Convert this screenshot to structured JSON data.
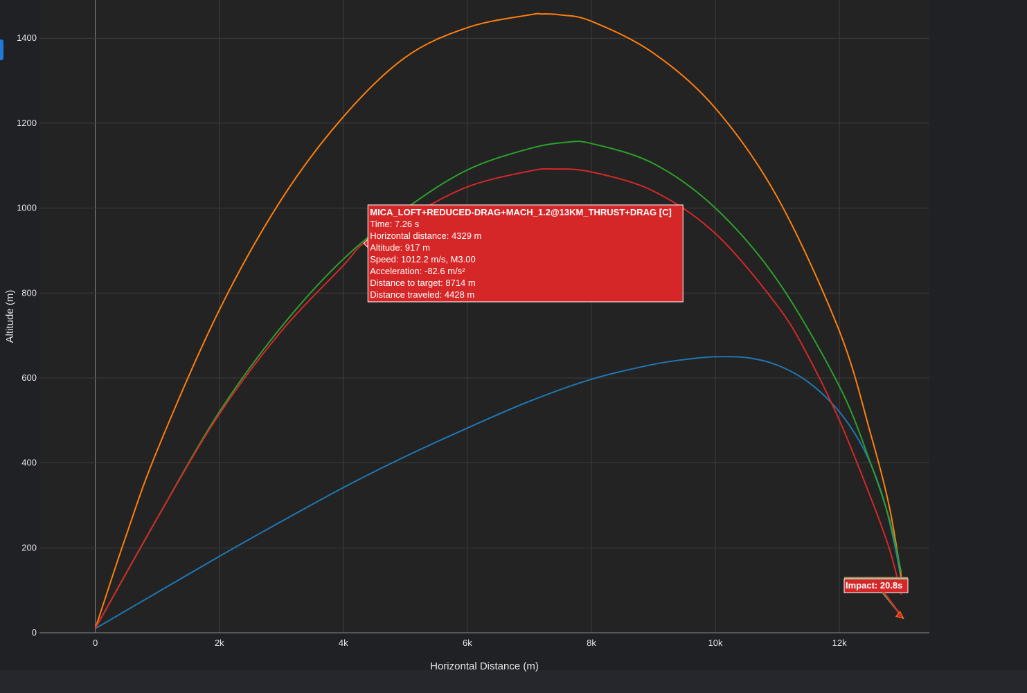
{
  "colors": {
    "page_background": "#1f2125",
    "plot_background": "#232323",
    "grid": "#3d3d3d",
    "axis_text": "#e6e6e6",
    "side_marker": "#1e7ad6"
  },
  "chart_data": {
    "type": "line",
    "title": "",
    "xlabel": "Horizontal Distance (m)",
    "ylabel": "Altitude (m)",
    "xlim": [
      -900,
      13450
    ],
    "ylim": [
      0,
      1490
    ],
    "x_ticks": [
      0,
      2000,
      4000,
      6000,
      8000,
      10000,
      12000
    ],
    "x_tick_labels": [
      "0",
      "2k",
      "4k",
      "6k",
      "8k",
      "10k",
      "12k"
    ],
    "y_ticks": [
      0,
      200,
      400,
      600,
      800,
      1000,
      1200,
      1400
    ],
    "y_tick_labels": [
      "0",
      "200",
      "400",
      "600",
      "800",
      "1000",
      "1200",
      "1400"
    ],
    "grid": true,
    "legend": "none",
    "series": [
      {
        "color": "#1f77b4",
        "x": [
          0,
          1000,
          2000,
          3000,
          4000,
          5000,
          6000,
          7000,
          8000,
          9000,
          9600,
          10000,
          10500,
          11000,
          11500,
          12000,
          12400,
          12700,
          12900,
          13000
        ],
        "y": [
          10,
          95,
          180,
          262,
          342,
          415,
          482,
          545,
          597,
          632,
          645,
          650,
          648,
          630,
          590,
          520,
          430,
          320,
          200,
          120
        ]
      },
      {
        "color": "#ff7f0e",
        "x": [
          0,
          500,
          1000,
          2000,
          3000,
          4000,
          5000,
          6000,
          7000,
          7200,
          7500,
          8000,
          9000,
          10000,
          11000,
          12000,
          12500,
          12800,
          13000
        ],
        "y": [
          10,
          230,
          430,
          760,
          1020,
          1215,
          1355,
          1425,
          1455,
          1457,
          1455,
          1440,
          1365,
          1235,
          1025,
          710,
          470,
          300,
          130
        ]
      },
      {
        "color": "#2ca02c",
        "x": [
          0,
          1000,
          2000,
          3000,
          4000,
          5000,
          6000,
          7000,
          7600,
          8000,
          9000,
          10000,
          11000,
          12000,
          12500,
          12800,
          13000
        ],
        "y": [
          10,
          270,
          520,
          720,
          880,
          998,
          1090,
          1140,
          1155,
          1152,
          1105,
          1000,
          830,
          580,
          400,
          270,
          140
        ]
      },
      {
        "color": "#d62728",
        "x": [
          0,
          1000,
          2000,
          3000,
          4000,
          4329,
          5000,
          6000,
          7000,
          7400,
          8000,
          9000,
          10000,
          11000,
          11500,
          12000,
          12500,
          12800,
          13000
        ],
        "y": [
          10,
          270,
          515,
          710,
          865,
          917,
          975,
          1050,
          1087,
          1092,
          1085,
          1040,
          940,
          770,
          650,
          500,
          320,
          200,
          90
        ]
      }
    ],
    "annotations": [
      {
        "kind": "hover-tooltip",
        "x": 4329,
        "y": 917,
        "color": "#d62728",
        "lines": [
          "MICA_LOFT+REDUCED-DRAG+MACH_1.2@13KM_THRUST+DRAG [C]",
          "Time: 7.26 s",
          "Horizontal distance: 4329 m",
          "Altitude: 917 m",
          "Speed: 1012.2 m/s, M3.00",
          "Acceleration: -82.6 m/s²",
          "Distance to target: 8714 m",
          "Distance traveled: 4428 m"
        ]
      },
      {
        "kind": "impact-label",
        "x": 13000,
        "y": 50,
        "text": "Impact: 20.8s",
        "color": "#d62728",
        "band_colors": [
          "#1f77b4",
          "#ff7f0e",
          "#2ca02c",
          "#d62728"
        ]
      }
    ]
  }
}
